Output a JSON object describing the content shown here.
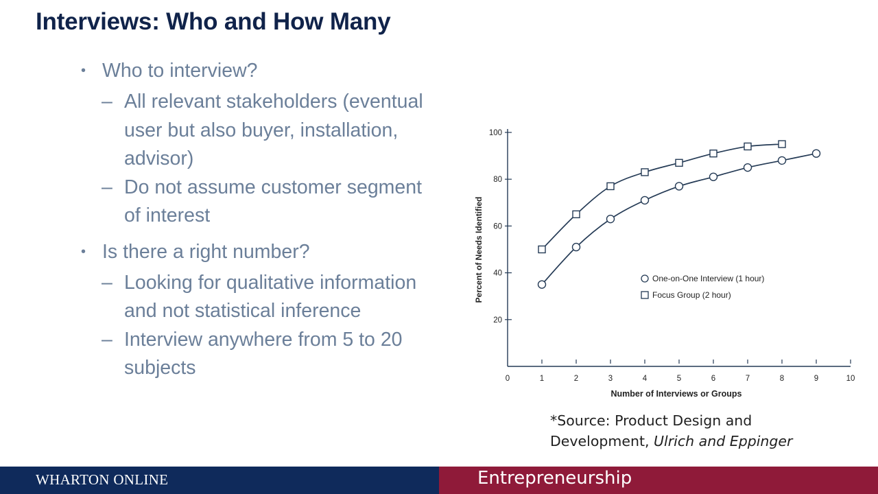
{
  "title": "Interviews: Who and How Many",
  "bullets": [
    {
      "text": "Who to interview?",
      "sub": [
        [
          "All relevant stakeholders (eventual",
          "user but also buyer, installation,",
          "advisor)"
        ],
        [
          "Do not assume customer segment",
          "of interest"
        ]
      ]
    },
    {
      "text": "Is there a right number?",
      "sub": [
        [
          "Looking for qualitative information",
          "and not statistical inference"
        ],
        [
          "Interview anywhere from 5 to 20",
          "subjects"
        ]
      ]
    }
  ],
  "chart_data": {
    "type": "line",
    "xlabel": "Number of Interviews or Groups",
    "ylabel": "Percent of Needs Identified",
    "xlim": [
      0,
      10
    ],
    "ylim": [
      0,
      100
    ],
    "x_ticks": [
      "0",
      "1",
      "2",
      "3",
      "4",
      "5",
      "6",
      "7",
      "8",
      "9",
      "10"
    ],
    "y_ticks": [
      "20",
      "40",
      "60",
      "80",
      "100"
    ],
    "legend_position": "right-middle",
    "series": [
      {
        "name": "One-on-One Interview (1 hour)",
        "marker": "circle",
        "x": [
          1,
          2,
          3,
          4,
          5,
          6,
          7,
          8,
          9
        ],
        "y": [
          35,
          51,
          63,
          71,
          77,
          81,
          85,
          88,
          91
        ]
      },
      {
        "name": "Focus Group (2 hour)",
        "marker": "square",
        "x": [
          1,
          2,
          3,
          4,
          5,
          6,
          7,
          8
        ],
        "y": [
          50,
          65,
          77,
          83,
          87,
          91,
          94,
          95
        ]
      }
    ]
  },
  "source": {
    "line1": "*Source: Product Design and",
    "line2_prefix": "Development, ",
    "line2_italic": "Ulrich and Eppinger"
  },
  "footer": {
    "left": "WHARTON ONLINE",
    "right": "Entrepreneurship",
    "left_color": "#0f2a5b",
    "right_color": "#8f1a39"
  }
}
